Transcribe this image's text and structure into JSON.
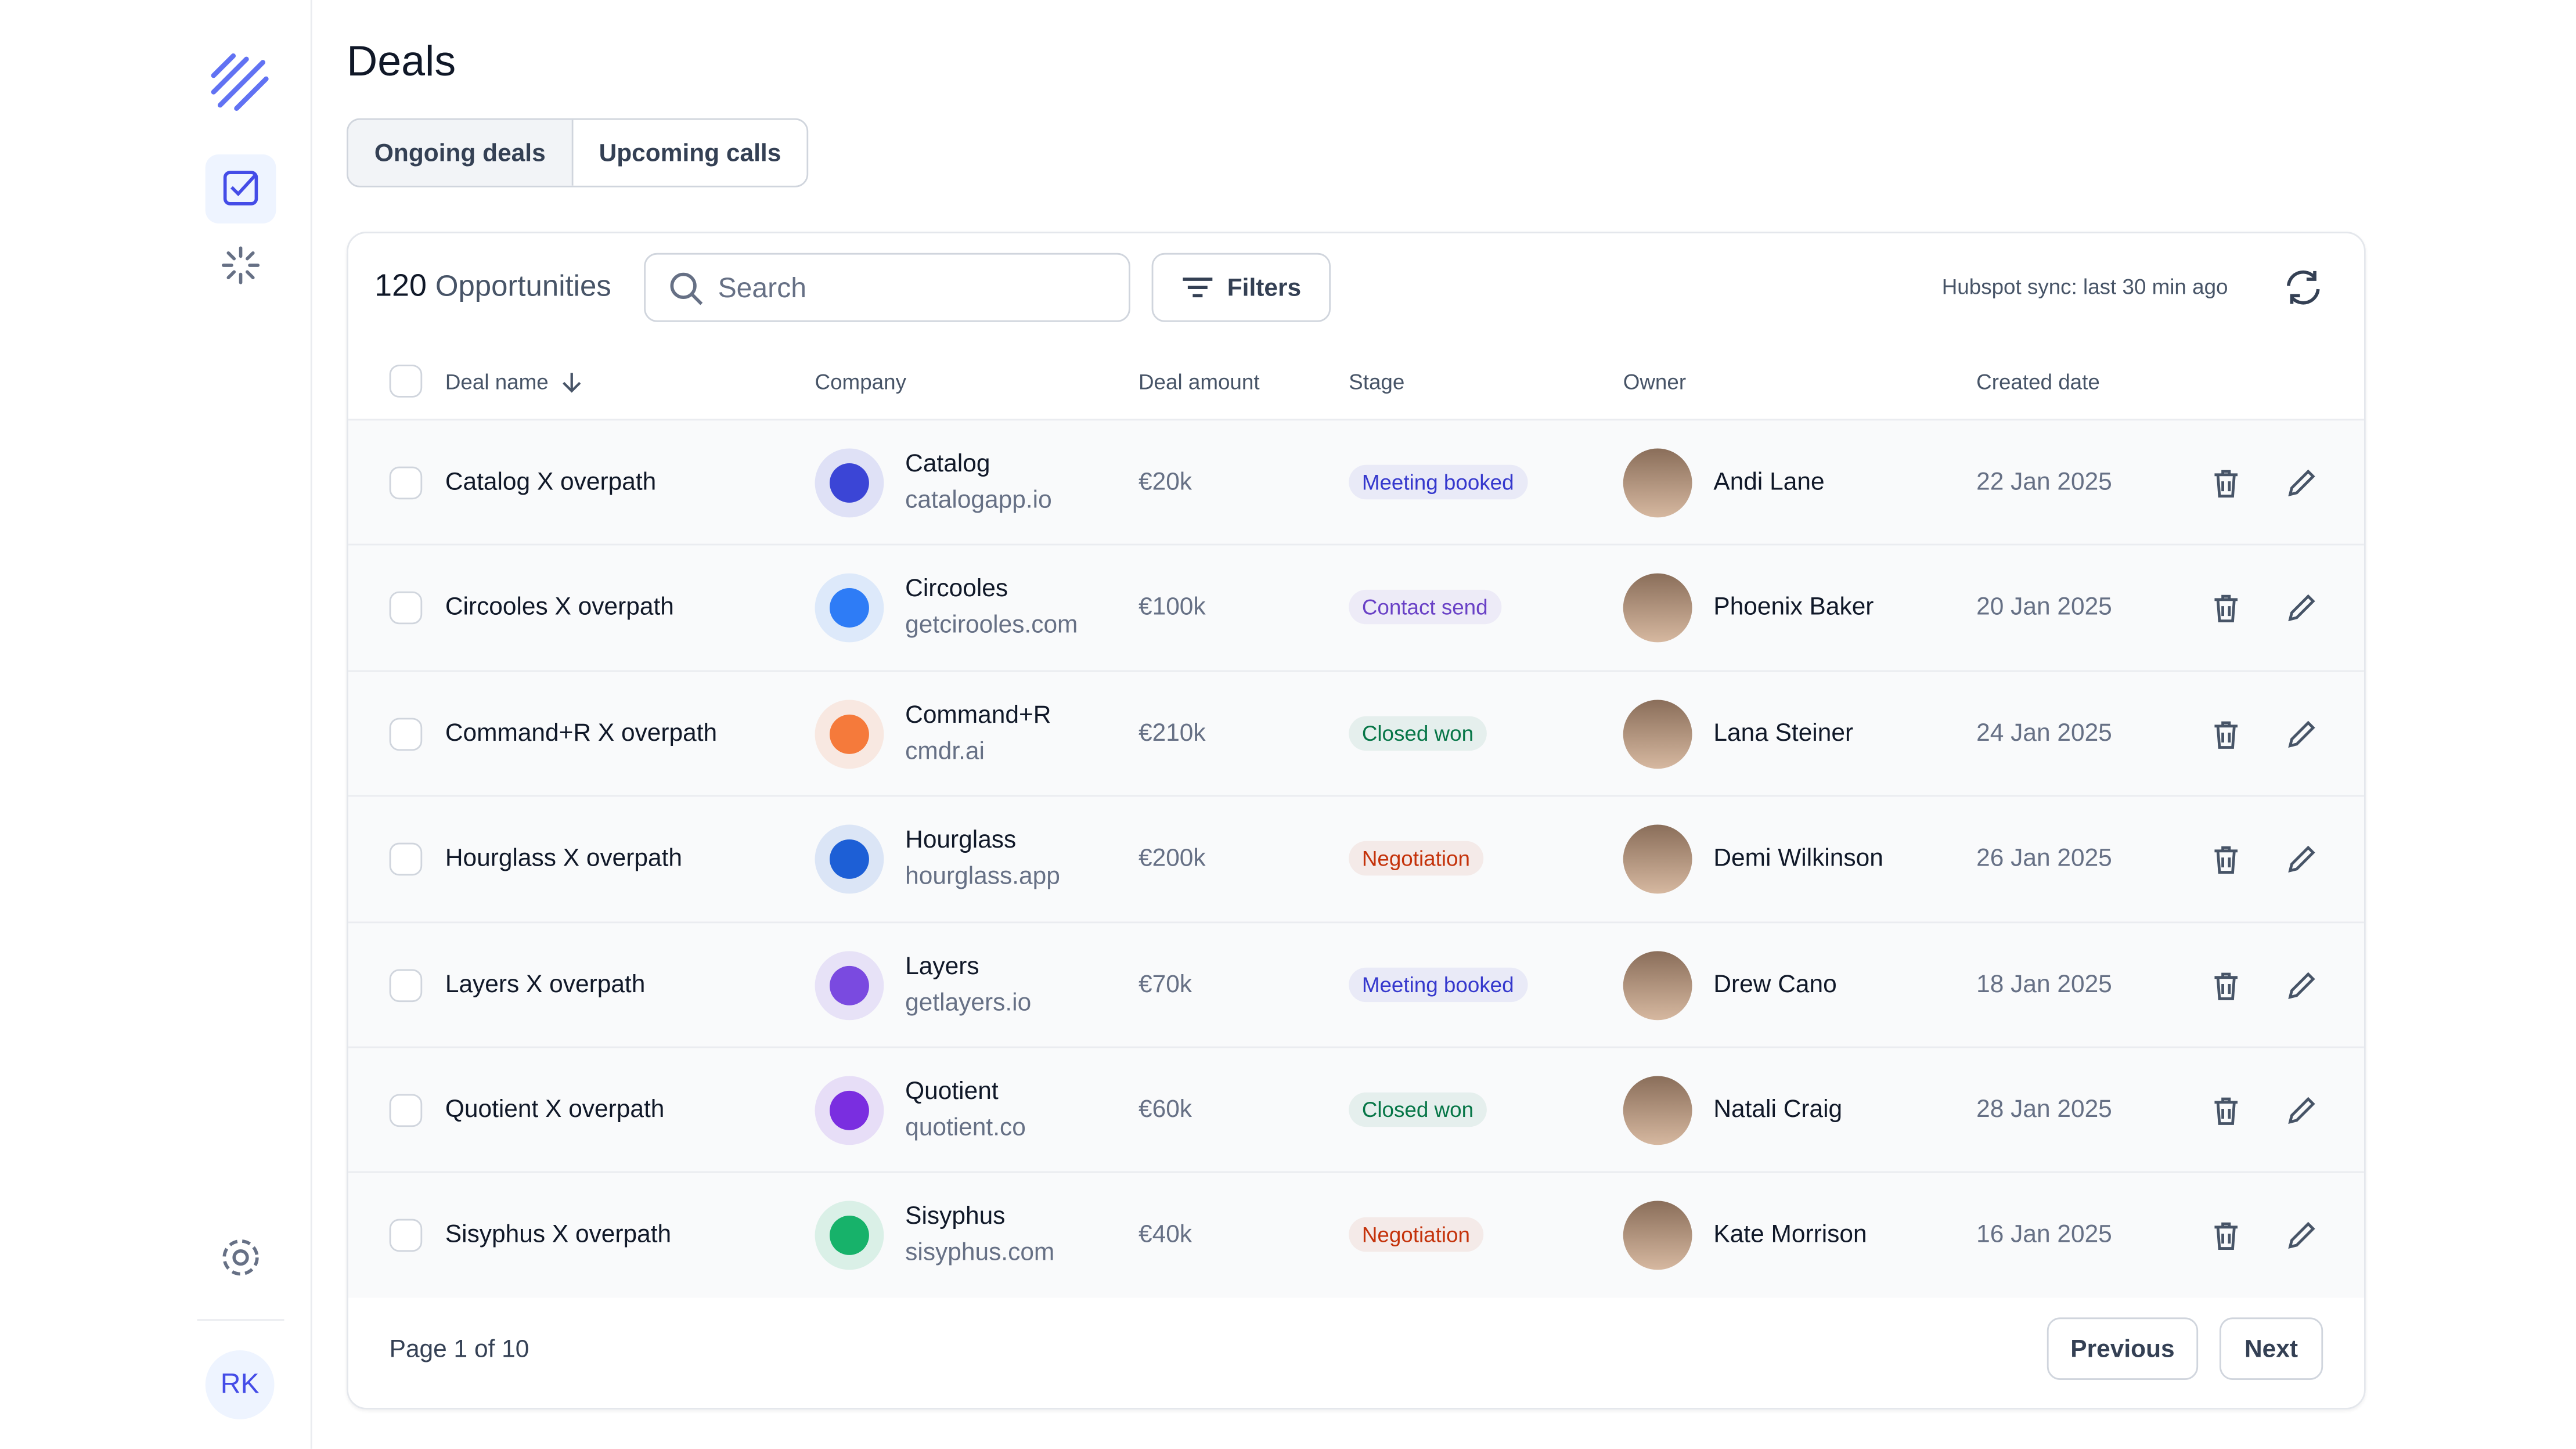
{
  "sidebar": {
    "avatar": "RK"
  },
  "header": {
    "title": "Deals",
    "tabs": [
      "Ongoing deals",
      "Upcoming calls"
    ]
  },
  "toolbar": {
    "count": "120",
    "count_label": "Opportunities",
    "search_placeholder": "Search",
    "filters": "Filters",
    "sync": "Hubspot sync: last 30 min ago"
  },
  "table": {
    "columns": [
      "Deal name",
      "Company",
      "Deal amount",
      "Stage",
      "Owner",
      "Created date"
    ],
    "rows": [
      {
        "deal": "Catalog X overpath",
        "company": "Catalog",
        "domain": "catalogapp.io",
        "amount": "€20k",
        "stage": "Meeting booked",
        "stage_color": "#3538cd",
        "logo_color": "#3b45d6",
        "owner": "Andi Lane",
        "created": "22 Jan 2025"
      },
      {
        "deal": "Circooles X overpath",
        "company": "Circooles",
        "domain": "getcirooles.com",
        "amount": "€100k",
        "stage": "Contact send",
        "stage_color": "#6941c6",
        "logo_color": "#2e7cf6",
        "owner": "Phoenix Baker",
        "created": "20 Jan 2025"
      },
      {
        "deal": "Command+R X overpath",
        "company": "Command+R",
        "domain": "cmdr.ai",
        "amount": "€210k",
        "stage": "Closed won",
        "stage_color": "#067647",
        "logo_color": "#f57a3b",
        "owner": "Lana Steiner",
        "created": "24 Jan 2025"
      },
      {
        "deal": "Hourglass X overpath",
        "company": "Hourglass",
        "domain": "hourglass.app",
        "amount": "€200k",
        "stage": "Negotiation",
        "stage_color": "#c4320a",
        "logo_color": "#1d5fd6",
        "owner": "Demi Wilkinson",
        "created": "26 Jan 2025"
      },
      {
        "deal": "Layers X overpath",
        "company": "Layers",
        "domain": "getlayers.io",
        "amount": "€70k",
        "stage": "Meeting booked",
        "stage_color": "#3538cd",
        "logo_color": "#7a4ae0",
        "owner": "Drew Cano",
        "created": "18 Jan 2025"
      },
      {
        "deal": "Quotient X overpath",
        "company": "Quotient",
        "domain": "quotient.co",
        "amount": "€60k",
        "stage": "Closed won",
        "stage_color": "#067647",
        "logo_color": "#7a2ee0",
        "owner": "Natali Craig",
        "created": "28 Jan 2025"
      },
      {
        "deal": "Sisyphus X overpath",
        "company": "Sisyphus",
        "domain": "sisyphus.com",
        "amount": "€40k",
        "stage": "Negotiation",
        "stage_color": "#c4320a",
        "logo_color": "#17b26a",
        "owner": "Kate Morrison",
        "created": "16 Jan 2025"
      }
    ]
  },
  "footer": {
    "page": "Page 1 of 10",
    "previous": "Previous",
    "next": "Next"
  }
}
